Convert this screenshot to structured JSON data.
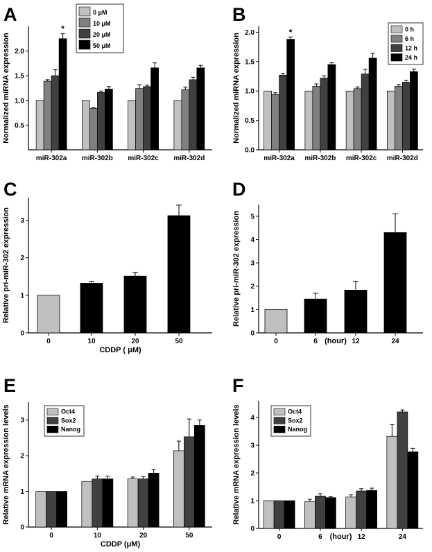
{
  "chart_data": [
    {
      "panel": "A",
      "type": "bar",
      "categories": [
        "miR-302a",
        "miR-302b",
        "miR-302c",
        "miR-302d"
      ],
      "series": [
        {
          "name": "0 μM",
          "color": "#c0c0c0",
          "values": [
            1.0,
            1.0,
            1.0,
            1.0
          ],
          "errors": [
            0,
            0,
            0,
            0
          ]
        },
        {
          "name": "10 μM",
          "color": "#808080",
          "values": [
            1.39,
            0.84,
            1.24,
            1.22
          ],
          "errors": [
            0.03,
            0.02,
            0.08,
            0.05
          ]
        },
        {
          "name": "20 μM",
          "color": "#404040",
          "values": [
            1.5,
            1.16,
            1.28,
            1.42
          ],
          "errors": [
            0.12,
            0.03,
            0.03,
            0.05
          ]
        },
        {
          "name": "50 μM",
          "color": "#000000",
          "values": [
            2.25,
            1.23,
            1.66,
            1.66
          ],
          "errors": [
            0.1,
            0.05,
            0.1,
            0.05
          ]
        }
      ],
      "ylabel": "Normalized miRNA expression",
      "xlabel": "",
      "ylim": [
        0,
        2.5
      ],
      "yticks": [
        "0.5",
        "1.0",
        "1.5",
        "2.0"
      ],
      "annotations": [
        {
          "text": "*",
          "category": 0,
          "series": 3
        }
      ],
      "legend": "top-right"
    },
    {
      "panel": "B",
      "type": "bar",
      "categories": [
        "miR-302a",
        "miR-302b",
        "miR-302c",
        "miR-302d"
      ],
      "series": [
        {
          "name": "0 h",
          "color": "#c0c0c0",
          "values": [
            1.0,
            1.0,
            1.0,
            1.0
          ],
          "errors": [
            0,
            0,
            0,
            0
          ]
        },
        {
          "name": "6 h",
          "color": "#808080",
          "values": [
            0.94,
            1.08,
            1.04,
            1.08
          ],
          "errors": [
            0.03,
            0.04,
            0.03,
            0.03
          ]
        },
        {
          "name": "12 h",
          "color": "#404040",
          "values": [
            1.27,
            1.22,
            1.29,
            1.15
          ],
          "errors": [
            0.03,
            0.04,
            0.08,
            0.03
          ]
        },
        {
          "name": "24 h",
          "color": "#000000",
          "values": [
            1.88,
            1.45,
            1.56,
            1.33
          ],
          "errors": [
            0.04,
            0.03,
            0.08,
            0.04
          ]
        }
      ],
      "ylabel": "Normalized miRNA expression",
      "xlabel": "",
      "ylim": [
        0,
        2.1
      ],
      "yticks": [
        "0.0",
        "0.5",
        "1.0",
        "1.5",
        "2.0"
      ],
      "annotations": [
        {
          "text": "*",
          "category": 0,
          "series": 3
        }
      ],
      "legend": "top-right"
    },
    {
      "panel": "C",
      "type": "bar",
      "categories": [
        "0",
        "10",
        "20",
        "50"
      ],
      "values": [
        1.0,
        1.32,
        1.51,
        3.12
      ],
      "errors": [
        0,
        0.05,
        0.1,
        0.28
      ],
      "colors": [
        "#c0c0c0",
        "#000000",
        "#000000",
        "#000000"
      ],
      "ylabel": "Relative pri-miR-302 expression",
      "xlabel": "CDDP ( μM)",
      "ylim": [
        0,
        3.6
      ],
      "yticks": [
        "0",
        "1",
        "2",
        "3"
      ]
    },
    {
      "panel": "D",
      "type": "bar",
      "categories": [
        "0",
        "6",
        "12",
        "24"
      ],
      "values": [
        1.0,
        1.45,
        1.83,
        4.3
      ],
      "errors": [
        0,
        0.25,
        0.38,
        0.8
      ],
      "colors": [
        "#c0c0c0",
        "#000000",
        "#000000",
        "#000000"
      ],
      "ylabel": "Relative pri-miR-302 expression",
      "xlabel": "(hour)",
      "ylim": [
        0,
        5.5
      ],
      "yticks": [
        "0",
        "1",
        "2",
        "3",
        "4",
        "5"
      ]
    },
    {
      "panel": "E",
      "type": "bar",
      "categories": [
        "0",
        "10",
        "20",
        "50"
      ],
      "series": [
        {
          "name": "Oct4",
          "color": "#c0c0c0",
          "values": [
            1.0,
            1.28,
            1.35,
            2.14
          ],
          "errors": [
            0,
            0,
            0.05,
            0.27
          ]
        },
        {
          "name": "Sox2",
          "color": "#404040",
          "values": [
            1.0,
            1.35,
            1.35,
            2.53
          ],
          "errors": [
            0,
            0.08,
            0.06,
            0.5
          ]
        },
        {
          "name": "Nanog",
          "color": "#000000",
          "values": [
            1.0,
            1.35,
            1.51,
            2.85
          ],
          "errors": [
            0,
            0.08,
            0.1,
            0.15
          ]
        }
      ],
      "ylabel": "Relative mRNA expression levels",
      "xlabel": "CDDP (μM)",
      "ylim": [
        0,
        3.5
      ],
      "yticks": [
        "0",
        "1",
        "2",
        "3"
      ],
      "legend": "top-left"
    },
    {
      "panel": "F",
      "type": "bar",
      "categories": [
        "0",
        "6",
        "12",
        "24"
      ],
      "series": [
        {
          "name": "Oct4",
          "color": "#c0c0c0",
          "values": [
            1.0,
            0.97,
            1.13,
            3.32
          ],
          "errors": [
            0,
            0.08,
            0.08,
            0.42
          ]
        },
        {
          "name": "Sox2",
          "color": "#404040",
          "values": [
            1.0,
            1.17,
            1.35,
            4.2
          ],
          "errors": [
            0,
            0.08,
            0.08,
            0.07
          ]
        },
        {
          "name": "Nanog",
          "color": "#000000",
          "values": [
            1.0,
            1.11,
            1.37,
            2.76
          ],
          "errors": [
            0,
            0.05,
            0.08,
            0.13
          ]
        }
      ],
      "ylabel": "Relative mRNA expression levels",
      "xlabel": "(hour)",
      "ylim": [
        0,
        4.6
      ],
      "yticks": [
        "0",
        "1",
        "2",
        "3",
        "4"
      ],
      "legend": "top-left"
    }
  ]
}
